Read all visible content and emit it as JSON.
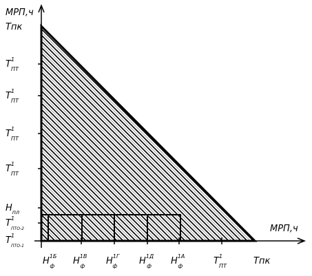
{
  "y_axis_label": "МРП,ч",
  "x_axis_label": "МРП,ч",
  "y_labels": [
    {
      "base": "Тпк"
    },
    {
      "base": "T",
      "sub": "ПТ",
      "sup": "1"
    },
    {
      "base": "T",
      "sub": "ПТ",
      "sup": "1"
    },
    {
      "base": "T",
      "sub": "ПТ",
      "sup": "1"
    },
    {
      "base": "T",
      "sub": "ПТ",
      "sup": "1"
    },
    {
      "base": "Н",
      "sub": "пл"
    },
    {
      "base": "T",
      "sub": "ПТО-2",
      "sup": "1"
    },
    {
      "base": "T",
      "sub": "ПТО-1",
      "sup": "1"
    }
  ],
  "x_labels": [
    {
      "base": "Н",
      "sub": "ф",
      "sup": "1Б"
    },
    {
      "base": "Н",
      "sub": "ф",
      "sup": "1В"
    },
    {
      "base": "Н",
      "sub": "ф",
      "sup": "1Г"
    },
    {
      "base": "Н",
      "sub": "ф",
      "sup": "1Д"
    },
    {
      "base": "Н",
      "sub": "ф",
      "sup": "1А"
    },
    {
      "base": "T",
      "sub": "ПТ",
      "sup": "1"
    },
    {
      "base": "Тпк"
    }
  ]
}
